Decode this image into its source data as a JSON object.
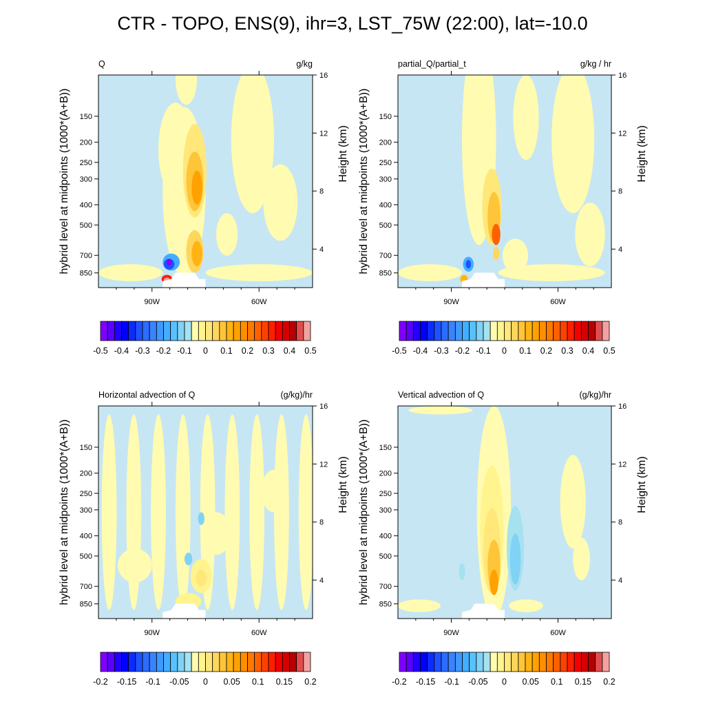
{
  "title": "CTR - TOPO, ENS(9), ihr=3, LST_75W (22:00), lat=-10.0",
  "chart_data": [
    {
      "type": "heatmap",
      "title": "Q",
      "units": "g/kg",
      "xlabel": "",
      "ylabel": "hybrid level at midpoints (1000*(A+B))",
      "ylabel_right": "Height (km)",
      "x_ticks": [
        "90W",
        "60W"
      ],
      "y_ticks": [
        "150",
        "200",
        "250",
        "300",
        "400",
        "500",
        "700",
        "850"
      ],
      "y_right_ticks": [
        "4",
        "8",
        "12",
        "16"
      ],
      "colorbar_ticks": [
        "-0.5",
        "-0.4",
        "-0.3",
        "-0.2",
        "-0.1",
        "0",
        "0.1",
        "0.2",
        "0.3",
        "0.4",
        "0.5"
      ],
      "colorbar_range": [
        -0.5,
        0.5
      ],
      "features": [
        {
          "desc": "moistening plume",
          "lon": -67,
          "pressure_top": 250,
          "pressure_bottom": 700,
          "max_value": 0.3
        },
        {
          "desc": "drying minimum near surface",
          "lon": -80,
          "pressure": 800,
          "min_value": -0.5
        },
        {
          "desc": "near-surface maximum",
          "lon": -80,
          "pressure": 880,
          "max_value": 0.5
        }
      ]
    },
    {
      "type": "heatmap",
      "title": "partial_Q/partial_t",
      "units": "g/kg / hr",
      "xlabel": "",
      "ylabel": "hybrid level at midpoints (1000*(A+B))",
      "ylabel_right": "Height (km)",
      "x_ticks": [
        "90W",
        "60W"
      ],
      "y_ticks": [
        "150",
        "200",
        "250",
        "300",
        "400",
        "500",
        "700",
        "850"
      ],
      "y_right_ticks": [
        "4",
        "8",
        "12",
        "16"
      ],
      "colorbar_ticks": [
        "-0.5",
        "-0.4",
        "-0.3",
        "-0.2",
        "-0.1",
        "0",
        "0.1",
        "0.2",
        "0.3",
        "0.4",
        "0.5"
      ],
      "colorbar_range": [
        -0.5,
        0.5
      ],
      "features": [
        {
          "desc": "tendency maximum",
          "lon": -66,
          "pressure": 600,
          "max_value": 0.3
        },
        {
          "desc": "tendency minimum",
          "lon": -82,
          "pressure": 790,
          "min_value": -0.2
        }
      ]
    },
    {
      "type": "heatmap",
      "title": "Horizontal advection of Q",
      "units": "(g/kg)/hr",
      "xlabel": "",
      "ylabel": "hybrid level at midpoints (1000*(A+B))",
      "ylabel_right": "Height (km)",
      "x_ticks": [
        "90W",
        "60W"
      ],
      "y_ticks": [
        "150",
        "200",
        "250",
        "300",
        "400",
        "500",
        "700",
        "850"
      ],
      "y_right_ticks": [
        "4",
        "8",
        "12",
        "16"
      ],
      "colorbar_ticks": [
        "-0.2",
        "-0.15",
        "-0.1",
        "-0.05",
        "0",
        "0.05",
        "0.1",
        "0.15",
        "0.2"
      ],
      "colorbar_range": [
        -0.2,
        0.2
      ],
      "features": [
        {
          "desc": "weak positive near surface",
          "lon": -72,
          "pressure": 650,
          "max_value": 0.05
        },
        {
          "desc": "weak negative column",
          "lon": -79,
          "pressure": 500,
          "min_value": -0.05
        }
      ]
    },
    {
      "type": "heatmap",
      "title": "Vertical advection of Q",
      "units": "(g/kg)/hr",
      "xlabel": "",
      "ylabel": "hybrid level at midpoints (1000*(A+B))",
      "ylabel_right": "Height (km)",
      "x_ticks": [
        "90W",
        "60W"
      ],
      "y_ticks": [
        "150",
        "200",
        "250",
        "300",
        "400",
        "500",
        "700",
        "850"
      ],
      "y_right_ticks": [
        "4",
        "8",
        "12",
        "16"
      ],
      "colorbar_ticks": [
        "-0.2",
        "-0.15",
        "-0.1",
        "-0.05",
        "0",
        "0.05",
        "0.1",
        "0.15",
        "0.2"
      ],
      "colorbar_range": [
        -0.2,
        0.2
      ],
      "features": [
        {
          "desc": "positive column",
          "lon": -67,
          "pressure_top": 100,
          "pressure_bottom": 900,
          "max_value": 0.1
        },
        {
          "desc": "negative column",
          "lon": -60,
          "pressure_top": 400,
          "pressure_bottom": 750,
          "min_value": -0.05
        }
      ]
    }
  ]
}
